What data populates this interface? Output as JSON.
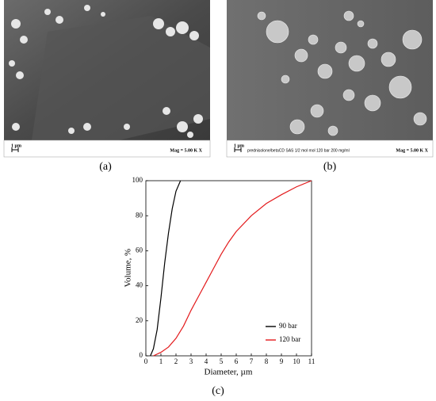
{
  "panels": [
    {
      "label": "(a)",
      "scale": "1 µm",
      "mag": "Mag =  5.00 K X"
    },
    {
      "label": "(b)",
      "scale": "1 µm",
      "note": "prednisolone/betaCD SAS 1/2 mol mol 120 bar 200 mg/ml",
      "mag": "Mag =  5.00 K X"
    }
  ],
  "chart_data": {
    "type": "line",
    "label": "(c)",
    "x_label": "Diameter, µm",
    "y_label": "Volume, %",
    "xlim": [
      0,
      11
    ],
    "ylim": [
      0,
      100
    ],
    "xticks": [
      0,
      1,
      2,
      3,
      4,
      5,
      6,
      7,
      8,
      9,
      10,
      11
    ],
    "yticks": [
      0,
      20,
      40,
      60,
      80,
      100
    ],
    "legend": "lower right",
    "series": [
      {
        "name": "90 bar",
        "color": "#000000",
        "x": [
          0.3,
          0.5,
          0.75,
          1.0,
          1.25,
          1.5,
          1.75,
          2.0,
          2.3
        ],
        "values": [
          0,
          4,
          15,
          33,
          53,
          70,
          84,
          94,
          100
        ]
      },
      {
        "name": "120 bar",
        "color": "#e31a1c",
        "x": [
          0.5,
          1.0,
          1.5,
          2.0,
          2.5,
          3.0,
          3.5,
          4.0,
          4.5,
          5.0,
          5.5,
          6.0,
          7.0,
          8.0,
          9.0,
          10.0,
          11.0
        ],
        "values": [
          0,
          2,
          5,
          10,
          17,
          26,
          34,
          42,
          50,
          58,
          65,
          71,
          80,
          87,
          92,
          96.5,
          100
        ]
      }
    ]
  }
}
